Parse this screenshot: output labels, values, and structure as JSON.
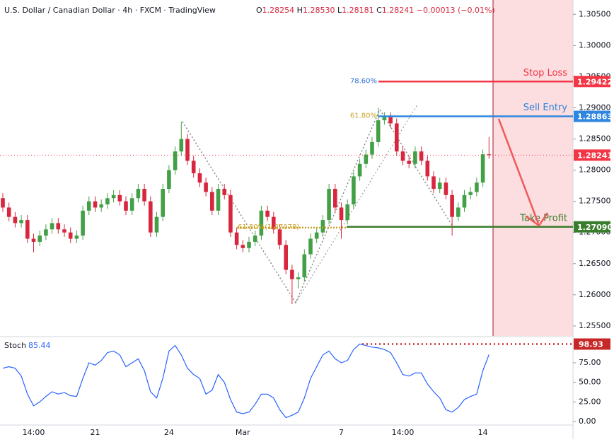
{
  "header": {
    "symbol": "U.S. Dollar / Canadian Dollar · 4h · FXCM · TradingView",
    "ohlc": [
      {
        "key": "O",
        "value": "1.28254"
      },
      {
        "key": "H",
        "value": "1.28530"
      },
      {
        "key": "L",
        "value": "1.28181"
      },
      {
        "key": "C",
        "value": "1.28241"
      }
    ],
    "change": "−0.00013 (−0.01%)"
  },
  "chart_data": [
    {
      "type": "candlestick",
      "categories": [
        null,
        null,
        null,
        null,
        null,
        "14:00",
        null,
        null,
        null,
        null,
        null,
        null,
        null,
        null,
        null,
        "21",
        null,
        null,
        null,
        null,
        null,
        null,
        null,
        null,
        null,
        null,
        null,
        "24",
        null,
        null,
        null,
        null,
        null,
        null,
        null,
        null,
        null,
        null,
        null,
        "Mar",
        null,
        null,
        null,
        null,
        null,
        null,
        null,
        null,
        null,
        null,
        null,
        null,
        null,
        null,
        null,
        "7",
        null,
        null,
        null,
        null,
        null,
        null,
        null,
        null,
        null,
        "14:00",
        null,
        null,
        null,
        null,
        null,
        null,
        null,
        null,
        null,
        null,
        null,
        null,
        "14",
        null
      ],
      "candles": [
        [
          1.2755,
          1.2763,
          1.2733,
          1.274
        ],
        [
          1.274,
          1.2748,
          1.2718,
          1.2725
        ],
        [
          1.2725,
          1.2733,
          1.2708,
          1.2715
        ],
        [
          1.2715,
          1.2728,
          1.2708,
          1.272
        ],
        [
          1.272,
          1.2728,
          1.2683,
          1.269
        ],
        [
          1.269,
          1.2698,
          1.2668,
          1.2685
        ],
        [
          1.2685,
          1.2703,
          1.2678,
          1.2695
        ],
        [
          1.2695,
          1.2713,
          1.2688,
          1.2705
        ],
        [
          1.2705,
          1.2723,
          1.2698,
          1.2715
        ],
        [
          1.2715,
          1.2723,
          1.2698,
          1.2705
        ],
        [
          1.2705,
          1.2713,
          1.2693,
          1.27
        ],
        [
          1.27,
          1.2708,
          1.2683,
          1.269
        ],
        [
          1.269,
          1.2703,
          1.2683,
          1.2695
        ],
        [
          1.2695,
          1.2743,
          1.2688,
          1.2735
        ],
        [
          1.2735,
          1.2758,
          1.2728,
          1.275
        ],
        [
          1.275,
          1.2758,
          1.2733,
          1.274
        ],
        [
          1.274,
          1.2753,
          1.2733,
          1.2745
        ],
        [
          1.2745,
          1.2763,
          1.2738,
          1.2755
        ],
        [
          1.2755,
          1.2768,
          1.2748,
          1.276
        ],
        [
          1.276,
          1.2768,
          1.2743,
          1.275
        ],
        [
          1.275,
          1.2758,
          1.2728,
          1.2735
        ],
        [
          1.2735,
          1.2763,
          1.2728,
          1.2755
        ],
        [
          1.2755,
          1.2778,
          1.2748,
          1.277
        ],
        [
          1.277,
          1.2778,
          1.2743,
          1.275
        ],
        [
          1.275,
          1.2758,
          1.2693,
          1.27
        ],
        [
          1.27,
          1.2733,
          1.2693,
          1.2725
        ],
        [
          1.2725,
          1.2778,
          1.2718,
          1.277
        ],
        [
          1.277,
          1.2808,
          1.2763,
          1.28
        ],
        [
          1.28,
          1.2838,
          1.2793,
          1.283
        ],
        [
          1.283,
          1.2878,
          1.2823,
          1.285
        ],
        [
          1.285,
          1.2858,
          1.2808,
          1.2815
        ],
        [
          1.2815,
          1.2823,
          1.2788,
          1.2795
        ],
        [
          1.2795,
          1.2803,
          1.2773,
          1.278
        ],
        [
          1.278,
          1.2788,
          1.2758,
          1.2765
        ],
        [
          1.2765,
          1.2773,
          1.2728,
          1.2735
        ],
        [
          1.2735,
          1.2778,
          1.2728,
          1.277
        ],
        [
          1.277,
          1.2778,
          1.2753,
          1.276
        ],
        [
          1.276,
          1.2768,
          1.2693,
          1.27
        ],
        [
          1.27,
          1.2708,
          1.2673,
          1.268
        ],
        [
          1.268,
          1.2688,
          1.2668,
          1.2675
        ],
        [
          1.2675,
          1.2693,
          1.2668,
          1.2685
        ],
        [
          1.2685,
          1.2703,
          1.2678,
          1.2695
        ],
        [
          1.2695,
          1.2743,
          1.2688,
          1.2735
        ],
        [
          1.2735,
          1.2743,
          1.2718,
          1.2725
        ],
        [
          1.2725,
          1.2733,
          1.2698,
          1.2705
        ],
        [
          1.2705,
          1.2713,
          1.2673,
          1.268
        ],
        [
          1.268,
          1.2688,
          1.2633,
          1.264
        ],
        [
          1.264,
          1.2648,
          1.2585,
          1.2625
        ],
        [
          1.2625,
          1.2636,
          1.261,
          1.2628
        ],
        [
          1.2628,
          1.2673,
          1.2621,
          1.2665
        ],
        [
          1.2665,
          1.2698,
          1.2658,
          1.269
        ],
        [
          1.269,
          1.2708,
          1.2683,
          1.27
        ],
        [
          1.27,
          1.2728,
          1.2693,
          1.272
        ],
        [
          1.272,
          1.2778,
          1.2713,
          1.277
        ],
        [
          1.277,
          1.2778,
          1.2733,
          1.274
        ],
        [
          1.274,
          1.2748,
          1.269,
          1.272
        ],
        [
          1.272,
          1.2753,
          1.2713,
          1.2745
        ],
        [
          1.2745,
          1.2798,
          1.2738,
          1.279
        ],
        [
          1.279,
          1.2818,
          1.2783,
          1.281
        ],
        [
          1.281,
          1.2833,
          1.2803,
          1.2825
        ],
        [
          1.2825,
          1.2853,
          1.2818,
          1.2845
        ],
        [
          1.2845,
          1.29,
          1.2838,
          1.288
        ],
        [
          1.288,
          1.2893,
          1.2873,
          1.2885
        ],
        [
          1.2885,
          1.2893,
          1.2868,
          1.2875
        ],
        [
          1.2875,
          1.2883,
          1.2823,
          1.283
        ],
        [
          1.283,
          1.2838,
          1.2808,
          1.2815
        ],
        [
          1.2815,
          1.2823,
          1.2803,
          1.281
        ],
        [
          1.281,
          1.2838,
          1.2803,
          1.283
        ],
        [
          1.283,
          1.2838,
          1.2808,
          1.2815
        ],
        [
          1.2815,
          1.2823,
          1.2783,
          1.279
        ],
        [
          1.279,
          1.2798,
          1.2763,
          1.277
        ],
        [
          1.277,
          1.2788,
          1.2763,
          1.278
        ],
        [
          1.278,
          1.2788,
          1.2753,
          1.276
        ],
        [
          1.276,
          1.2768,
          1.2695,
          1.2725
        ],
        [
          1.2725,
          1.2748,
          1.2718,
          1.274
        ],
        [
          1.274,
          1.2768,
          1.2733,
          1.276
        ],
        [
          1.276,
          1.2773,
          1.2753,
          1.2765
        ],
        [
          1.2765,
          1.2788,
          1.2758,
          1.278
        ],
        [
          1.278,
          1.2833,
          1.2773,
          1.28254
        ],
        [
          1.28254,
          1.2853,
          1.28181,
          1.28241
        ]
      ],
      "up_color": "#43a047",
      "down_color": "#d7263d",
      "ylim": [
        1.2534,
        1.3073
      ],
      "yticks": [
        {
          "value": 1.305,
          "label": "1.30500"
        },
        {
          "value": 1.3,
          "label": "1.30000"
        },
        {
          "value": 1.295,
          "label": "1.29500"
        },
        {
          "value": 1.29,
          "label": "1.29000"
        },
        {
          "value": 1.285,
          "label": "1.28500"
        },
        {
          "value": 1.28,
          "label": "1.28000"
        },
        {
          "value": 1.275,
          "label": "1.27500"
        },
        {
          "value": 1.27,
          "label": "1.27000"
        },
        {
          "value": 1.265,
          "label": "1.26500"
        },
        {
          "value": 1.26,
          "label": "1.26000"
        },
        {
          "value": 1.255,
          "label": "1.25500"
        }
      ],
      "levels": [
        {
          "name": "Stop Loss",
          "value": 1.29422,
          "label": "1.29422",
          "color": "#f23645",
          "fib": "78.60%",
          "fib_color": "#2f6fd6"
        },
        {
          "name": "Sell Entry",
          "value": 1.28863,
          "label": "1.28863",
          "color": "#2e86de",
          "fib": "61.80%",
          "fib_color": "#c9a227"
        },
        {
          "name": "Take Profit",
          "value": 1.2709,
          "label": "1.27090",
          "color": "#3a7d2c"
        }
      ],
      "current": {
        "value": 1.28241,
        "label": "1.28241",
        "color": "#f23645"
      },
      "fib_note": {
        "text": "61.80%(1.27078)",
        "value": 1.27078,
        "color": "#c9a227"
      }
    },
    {
      "type": "line",
      "title": "Stoch",
      "color": "#2962ff",
      "values": [
        68,
        70,
        68,
        58,
        35,
        20,
        25,
        32,
        38,
        35,
        37,
        33,
        32,
        55,
        75,
        72,
        78,
        88,
        90,
        85,
        70,
        75,
        80,
        65,
        38,
        30,
        55,
        90,
        97,
        85,
        68,
        60,
        55,
        35,
        40,
        60,
        50,
        28,
        12,
        10,
        12,
        22,
        35,
        35,
        30,
        15,
        5,
        8,
        12,
        30,
        55,
        70,
        85,
        90,
        80,
        75,
        78,
        92,
        99,
        97,
        95,
        94,
        92,
        88,
        75,
        60,
        58,
        62,
        62,
        48,
        38,
        30,
        15,
        12,
        18,
        28,
        32,
        35,
        65,
        85.44
      ],
      "ylim": [
        -3.6,
        106.6
      ],
      "yticks": [
        {
          "value": 75,
          "label": "75.00"
        },
        {
          "value": 50,
          "label": "50.00"
        },
        {
          "value": 25,
          "label": "25.00"
        },
        {
          "value": 0,
          "label": "0.00"
        }
      ],
      "level": {
        "value": 98.93,
        "color": "#c62828"
      }
    }
  ]
}
